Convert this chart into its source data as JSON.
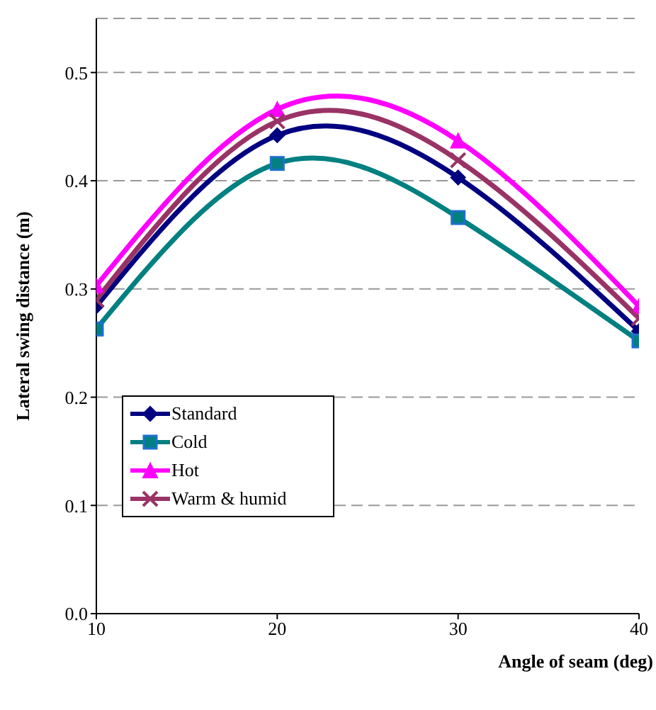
{
  "chart_data": {
    "type": "line",
    "xlabel": "Angle of seam (deg)",
    "ylabel": "Lateral swing distance (m)",
    "x": [
      10,
      20,
      30,
      40
    ],
    "series": [
      {
        "name": "Standard",
        "color": "#000080",
        "marker": "diamond",
        "values": [
          0.284,
          0.442,
          0.403,
          0.261
        ]
      },
      {
        "name": "Cold",
        "color": "#008080",
        "marker": "square",
        "values": [
          0.263,
          0.416,
          0.366,
          0.252
        ]
      },
      {
        "name": "Hot",
        "color": "#ff00ff",
        "marker": "triangle",
        "values": [
          0.303,
          0.466,
          0.437,
          0.284
        ]
      },
      {
        "name": "Warm & humid",
        "color": "#993366",
        "marker": "cross",
        "values": [
          0.29,
          0.455,
          0.419,
          0.273
        ]
      }
    ],
    "xlim": [
      10,
      40
    ],
    "xticks": [
      10,
      20,
      30,
      40
    ],
    "ylim": [
      0,
      0.55
    ],
    "yticks": [
      {
        "value": 0,
        "label": "0.0"
      },
      0.1,
      0.2,
      0.3,
      0.4,
      0.5
    ],
    "grid": "y",
    "legend": "bottom left"
  }
}
